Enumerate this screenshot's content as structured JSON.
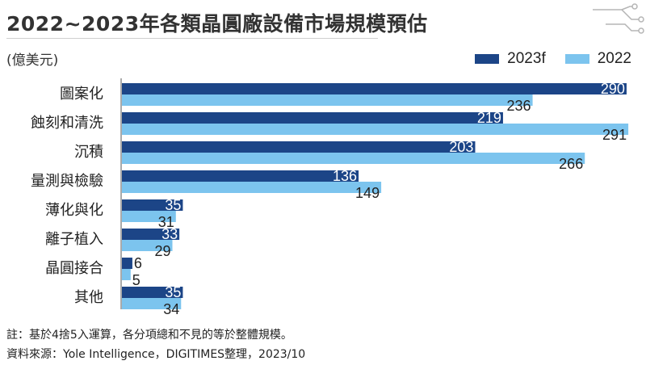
{
  "title": "2022~2023年各類晶圓廠設備市場規模預估",
  "unit": "(億美元)",
  "notes": {
    "note": "註：基於4捨5入運算，各分項總和不見的等於整體規模。",
    "source": "資料來源：Yole Intelligence，DIGITIMES整理，2023/10"
  },
  "colors": {
    "series_2023f": "#1c4587",
    "series_2022": "#7cc4ee"
  },
  "chart_data": {
    "type": "bar",
    "orientation": "horizontal",
    "categories": [
      "圖案化",
      "蝕刻和清洗",
      "沉積",
      "量測與檢驗",
      "薄化與化",
      "離子植入",
      "晶圓接合",
      "其他"
    ],
    "series": [
      {
        "name": "2023f",
        "values": [
          290,
          219,
          203,
          136,
          35,
          33,
          6,
          35
        ]
      },
      {
        "name": "2022",
        "values": [
          236,
          291,
          266,
          149,
          31,
          29,
          5,
          34
        ]
      }
    ],
    "xlim": [
      0,
      300
    ],
    "legend_position": "top-right",
    "grid": false
  }
}
